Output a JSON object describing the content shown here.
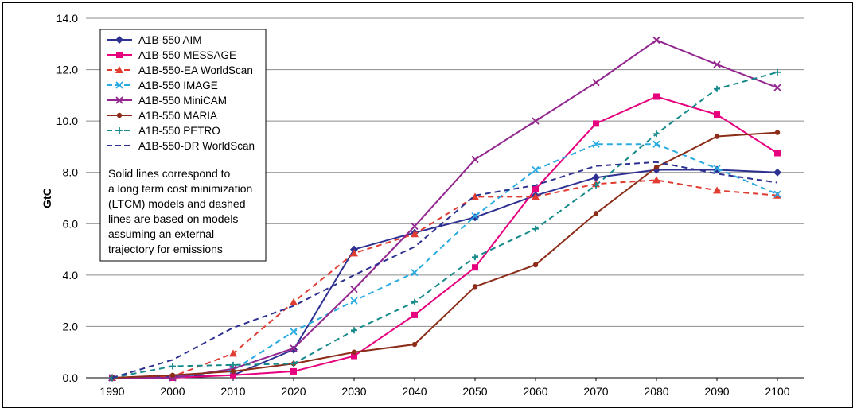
{
  "chart_data": {
    "type": "line",
    "title": "",
    "xlabel": "",
    "ylabel": "GtC",
    "x": [
      1990,
      2000,
      2010,
      2020,
      2030,
      2040,
      2050,
      2060,
      2070,
      2080,
      2090,
      2100
    ],
    "x_tick_labels": [
      "1990",
      "2000",
      "2010",
      "2020",
      "2030",
      "2040",
      "2050",
      "2060",
      "2070",
      "2080",
      "2090",
      "2100"
    ],
    "ylim": [
      0,
      14
    ],
    "y_tick_labels": [
      "0.0",
      "2.0",
      "4.0",
      "6.0",
      "8.0",
      "10.0",
      "12.0",
      "14.0"
    ],
    "grid": "horizontal",
    "legend_position": "top-left",
    "note": [
      "Solid lines correspond to",
      "a long term cost minimization",
      "(LTCM) models and dashed",
      "lines are based on models",
      "assuming an external",
      "trajectory for emissions"
    ],
    "series": [
      {
        "name": "A1B-550 AIM",
        "color": "#2e3192",
        "marker": "diamond",
        "dash": false,
        "values": [
          0.0,
          0.05,
          0.1,
          1.1,
          5.0,
          5.65,
          6.25,
          7.1,
          7.8,
          8.1,
          8.1,
          8.0
        ]
      },
      {
        "name": "A1B-550 MESSAGE",
        "color": "#e6007e",
        "marker": "square",
        "dash": false,
        "values": [
          0.0,
          0.0,
          0.1,
          0.25,
          0.85,
          2.45,
          4.3,
          7.35,
          9.9,
          10.95,
          10.25,
          8.75
        ]
      },
      {
        "name": "A1B-550-EA WorldScan",
        "color": "#e03c31",
        "marker": "triangle",
        "dash": true,
        "values": [
          0.0,
          0.05,
          0.95,
          2.95,
          4.85,
          5.6,
          7.05,
          7.05,
          7.55,
          7.7,
          7.3,
          7.1
        ]
      },
      {
        "name": "A1B-550 IMAGE",
        "color": "#29abe2",
        "marker": "x",
        "dash": true,
        "values": [
          0.0,
          0.0,
          0.3,
          1.8,
          3.0,
          4.1,
          6.3,
          8.1,
          9.1,
          9.1,
          8.15,
          7.15
        ]
      },
      {
        "name": "A1B-550 MiniCAM",
        "color": "#93278f",
        "marker": "x",
        "dash": false,
        "values": [
          0.0,
          0.0,
          0.35,
          1.15,
          3.45,
          5.9,
          8.5,
          10.0,
          11.5,
          13.15,
          12.2,
          11.3
        ]
      },
      {
        "name": "A1B-550 MARIA",
        "color": "#8c2d19",
        "marker": "circle",
        "dash": false,
        "values": [
          0.0,
          0.1,
          0.25,
          0.55,
          1.0,
          1.3,
          3.55,
          4.4,
          6.4,
          8.2,
          9.4,
          9.55
        ]
      },
      {
        "name": "A1B-550 PETRO",
        "color": "#168a8a",
        "marker": "plus",
        "dash": true,
        "values": [
          0.0,
          0.45,
          0.5,
          0.55,
          1.85,
          2.95,
          4.7,
          5.8,
          7.5,
          9.5,
          11.25,
          11.9
        ]
      },
      {
        "name": "A1B-550-DR WorldScan",
        "color": "#2e3192",
        "marker": "none",
        "dash": true,
        "values": [
          0.0,
          0.7,
          1.95,
          2.8,
          4.0,
          5.1,
          7.1,
          7.5,
          8.25,
          8.4,
          7.95,
          7.6
        ]
      }
    ]
  }
}
